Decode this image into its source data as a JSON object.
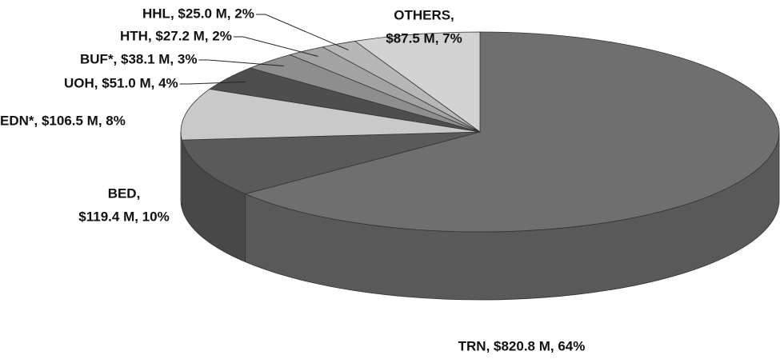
{
  "chart_data": {
    "type": "pie",
    "values": [
      820.8,
      119.4,
      106.5,
      51.0,
      38.1,
      27.2,
      25.0,
      87.5
    ],
    "value_labels": [
      [
        "TRN, $820.8 M, 64%"
      ],
      [
        "BED,",
        "$119.4 M, 10%"
      ],
      [
        "EDN*, $106.5 M, 8%"
      ],
      [
        "UOH, $51.0 M, 4%"
      ],
      [
        "BUF*, $38.1 M, 3%"
      ],
      [
        "HTH, $27.2 M, 2%"
      ],
      [
        "HHL, $25.0 M, 2%"
      ],
      [
        "OTHERS,",
        "$87.5 M, 7%"
      ]
    ],
    "colors": [
      "#6f6f6f",
      "#5a5a5a",
      "#c9c9c9",
      "#4e4e4e",
      "#8e8e8e",
      "#a3a3a3",
      "#b7b7b7",
      "#d3d3d3"
    ]
  }
}
